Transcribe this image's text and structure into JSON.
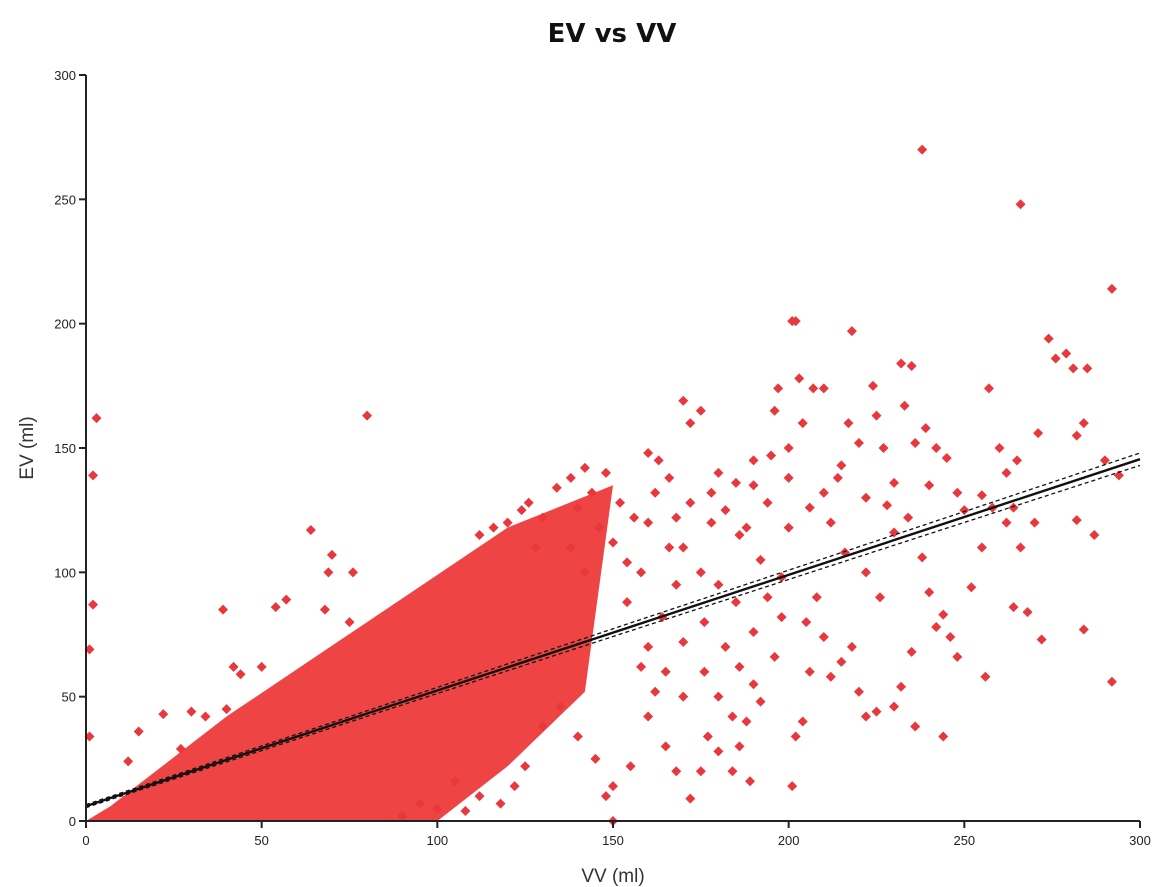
{
  "chart_data": {
    "type": "scatter",
    "title": "EV vs VV",
    "xlabel": "VV (ml)",
    "ylabel": "EV (ml)",
    "xlim": [
      0,
      300
    ],
    "ylim": [
      0,
      300
    ],
    "xticks": [
      "0",
      "50",
      "100",
      "150",
      "200",
      "250",
      "300"
    ],
    "yticks": [
      "0",
      "50",
      "100",
      "150",
      "200",
      "250",
      "300"
    ],
    "grid": false,
    "marker": "diamond",
    "colors": {
      "points": "#e8383d",
      "fit_line": "#111111"
    },
    "dense_region": {
      "description_polygon": [
        [
          0,
          0
        ],
        [
          7,
          6
        ],
        [
          40,
          42
        ],
        [
          80,
          80
        ],
        [
          120,
          118
        ],
        [
          150,
          135
        ],
        [
          142,
          52
        ],
        [
          120,
          22
        ],
        [
          100,
          0
        ]
      ]
    },
    "fit_line": {
      "slope": 0.465,
      "intercept": 6,
      "ci_halfwidth_at_x300": 2.5
    },
    "points": [
      [
        3,
        162
      ],
      [
        2,
        139
      ],
      [
        2,
        87
      ],
      [
        1,
        69
      ],
      [
        1,
        34
      ],
      [
        80,
        163
      ],
      [
        64,
        117
      ],
      [
        70,
        107
      ],
      [
        69,
        100
      ],
      [
        76,
        100
      ],
      [
        54,
        86
      ],
      [
        39,
        85
      ],
      [
        57,
        89
      ],
      [
        68,
        85
      ],
      [
        75,
        80
      ],
      [
        30,
        44
      ],
      [
        40,
        45
      ],
      [
        42,
        62
      ],
      [
        44,
        59
      ],
      [
        50,
        62
      ],
      [
        22,
        43
      ],
      [
        15,
        36
      ],
      [
        12,
        24
      ],
      [
        27,
        29
      ],
      [
        34,
        42
      ],
      [
        170,
        169
      ],
      [
        175,
        165
      ],
      [
        172,
        160
      ],
      [
        163,
        145
      ],
      [
        160,
        148
      ],
      [
        180,
        140
      ],
      [
        185,
        136
      ],
      [
        190,
        145
      ],
      [
        195,
        147
      ],
      [
        197,
        174
      ],
      [
        196,
        165
      ],
      [
        201,
        201
      ],
      [
        202,
        201
      ],
      [
        203,
        178
      ],
      [
        207,
        174
      ],
      [
        210,
        174
      ],
      [
        204,
        160
      ],
      [
        200,
        150
      ],
      [
        210,
        132
      ],
      [
        215,
        143
      ],
      [
        217,
        160
      ],
      [
        218,
        197
      ],
      [
        220,
        152
      ],
      [
        224,
        175
      ],
      [
        225,
        163
      ],
      [
        227,
        150
      ],
      [
        230,
        136
      ],
      [
        232,
        184
      ],
      [
        235,
        183
      ],
      [
        233,
        167
      ],
      [
        236,
        152
      ],
      [
        238,
        270
      ],
      [
        239,
        158
      ],
      [
        242,
        150
      ],
      [
        240,
        135
      ],
      [
        245,
        146
      ],
      [
        248,
        132
      ],
      [
        250,
        125
      ],
      [
        257,
        174
      ],
      [
        255,
        131
      ],
      [
        260,
        150
      ],
      [
        262,
        120
      ],
      [
        265,
        145
      ],
      [
        266,
        248
      ],
      [
        264,
        126
      ],
      [
        270,
        120
      ],
      [
        271,
        156
      ],
      [
        274,
        194
      ],
      [
        276,
        186
      ],
      [
        279,
        188
      ],
      [
        281,
        182
      ],
      [
        285,
        182
      ],
      [
        284,
        160
      ],
      [
        282,
        155
      ],
      [
        287,
        115
      ],
      [
        282,
        121
      ],
      [
        284,
        77
      ],
      [
        292,
        214
      ],
      [
        294,
        139
      ],
      [
        292,
        56
      ],
      [
        290,
        145
      ],
      [
        262,
        140
      ],
      [
        266,
        110
      ],
      [
        268,
        84
      ],
      [
        264,
        86
      ],
      [
        272,
        73
      ],
      [
        255,
        110
      ],
      [
        256,
        58
      ],
      [
        258,
        126
      ],
      [
        248,
        66
      ],
      [
        252,
        94
      ],
      [
        244,
        83
      ],
      [
        240,
        92
      ],
      [
        242,
        78
      ],
      [
        246,
        74
      ],
      [
        244,
        34
      ],
      [
        236,
        38
      ],
      [
        235,
        68
      ],
      [
        230,
        46
      ],
      [
        232,
        54
      ],
      [
        225,
        44
      ],
      [
        222,
        42
      ],
      [
        220,
        52
      ],
      [
        218,
        70
      ],
      [
        215,
        64
      ],
      [
        212,
        58
      ],
      [
        210,
        74
      ],
      [
        206,
        60
      ],
      [
        204,
        40
      ],
      [
        202,
        34
      ],
      [
        201,
        14
      ],
      [
        205,
        80
      ],
      [
        208,
        90
      ],
      [
        196,
        66
      ],
      [
        192,
        48
      ],
      [
        190,
        55
      ],
      [
        188,
        40
      ],
      [
        186,
        30
      ],
      [
        184,
        20
      ],
      [
        189,
        16
      ],
      [
        180,
        28
      ],
      [
        177,
        34
      ],
      [
        175,
        20
      ],
      [
        172,
        9
      ],
      [
        168,
        20
      ],
      [
        165,
        30
      ],
      [
        160,
        42
      ],
      [
        155,
        22
      ],
      [
        150,
        14
      ],
      [
        158,
        62
      ],
      [
        150,
        0
      ],
      [
        148,
        10
      ],
      [
        145,
        25
      ],
      [
        140,
        34
      ],
      [
        135,
        46
      ],
      [
        130,
        38
      ],
      [
        125,
        22
      ],
      [
        122,
        14
      ],
      [
        118,
        7
      ],
      [
        112,
        10
      ],
      [
        108,
        4
      ],
      [
        105,
        16
      ],
      [
        100,
        5
      ],
      [
        95,
        7
      ],
      [
        90,
        2
      ],
      [
        170,
        110
      ],
      [
        175,
        100
      ],
      [
        180,
        95
      ],
      [
        185,
        88
      ],
      [
        178,
        120
      ],
      [
        186,
        115
      ],
      [
        192,
        105
      ],
      [
        198,
        98
      ],
      [
        200,
        118
      ],
      [
        206,
        126
      ],
      [
        212,
        120
      ],
      [
        216,
        108
      ],
      [
        222,
        100
      ],
      [
        226,
        90
      ],
      [
        230,
        116
      ],
      [
        234,
        122
      ],
      [
        238,
        106
      ],
      [
        214,
        138
      ],
      [
        222,
        130
      ],
      [
        228,
        127
      ],
      [
        160,
        120
      ],
      [
        166,
        110
      ],
      [
        168,
        95
      ],
      [
        164,
        82
      ],
      [
        158,
        100
      ],
      [
        154,
        88
      ],
      [
        160,
        70
      ],
      [
        165,
        60
      ],
      [
        170,
        72
      ],
      [
        176,
        80
      ],
      [
        182,
        70
      ],
      [
        186,
        62
      ],
      [
        190,
        76
      ],
      [
        194,
        90
      ],
      [
        198,
        82
      ],
      [
        176,
        60
      ],
      [
        180,
        50
      ],
      [
        184,
        42
      ],
      [
        170,
        50
      ],
      [
        162,
        52
      ],
      [
        148,
        140
      ],
      [
        152,
        128
      ],
      [
        156,
        122
      ],
      [
        144,
        132
      ],
      [
        140,
        126
      ],
      [
        146,
        118
      ],
      [
        138,
        110
      ],
      [
        142,
        100
      ],
      [
        150,
        112
      ],
      [
        154,
        104
      ],
      [
        166,
        138
      ],
      [
        172,
        128
      ],
      [
        168,
        122
      ],
      [
        162,
        132
      ],
      [
        178,
        132
      ],
      [
        182,
        125
      ],
      [
        188,
        118
      ],
      [
        194,
        128
      ],
      [
        200,
        138
      ],
      [
        190,
        135
      ],
      [
        130,
        122
      ],
      [
        126,
        128
      ],
      [
        120,
        120
      ],
      [
        112,
        115
      ],
      [
        116,
        118
      ],
      [
        134,
        134
      ],
      [
        138,
        138
      ],
      [
        142,
        142
      ],
      [
        124,
        125
      ],
      [
        128,
        110
      ]
    ]
  }
}
